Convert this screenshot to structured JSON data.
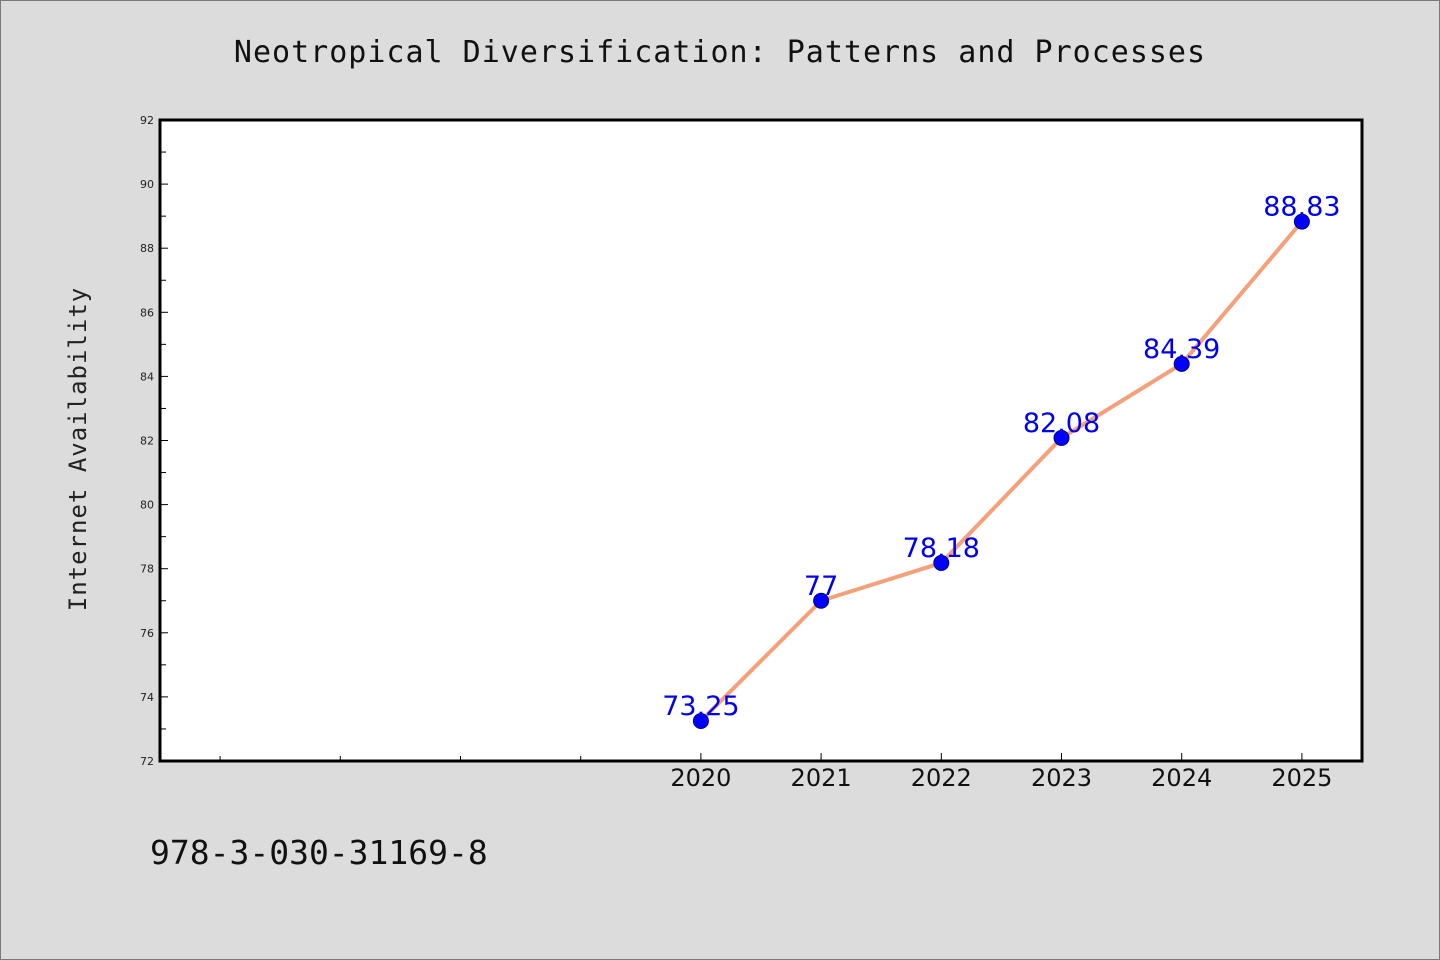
{
  "chart_data": {
    "type": "line",
    "title": "Neotropical Diversification: Patterns and Processes",
    "xlabel": "",
    "ylabel": "Internet Availability",
    "x": [
      2020,
      2021,
      2022,
      2023,
      2024,
      2025
    ],
    "x_tick_labels": [
      "2020",
      "2021",
      "2022",
      "2023",
      "2024",
      "2025"
    ],
    "series": [
      {
        "values": [
          73.25,
          77,
          78.18,
          82.08,
          84.39,
          88.83
        ],
        "data_labels": [
          "73.25",
          "77",
          "78.18",
          "82.08",
          "84.39",
          "88.83"
        ]
      }
    ],
    "xlim": [
      2015.5,
      2025.5
    ],
    "ylim": [
      72,
      92
    ],
    "y_ticks": [
      72,
      74,
      76,
      78,
      80,
      82,
      84,
      86,
      88,
      90,
      92
    ],
    "y_tick_labels": [
      "72",
      "74",
      "76",
      "78",
      "80",
      "82",
      "84",
      "86",
      "88",
      "90",
      "92"
    ],
    "x_minor_ticks": [
      2016,
      2017,
      2018,
      2019
    ],
    "grid": false,
    "colors": {
      "line": "#f4a07a",
      "marker": "#0000ff",
      "data_label": "#0000ee",
      "plot_background": "#ffffff",
      "page_background": "#dcdcdc"
    }
  },
  "footer": {
    "isbn": "978-3-030-31169-8"
  }
}
